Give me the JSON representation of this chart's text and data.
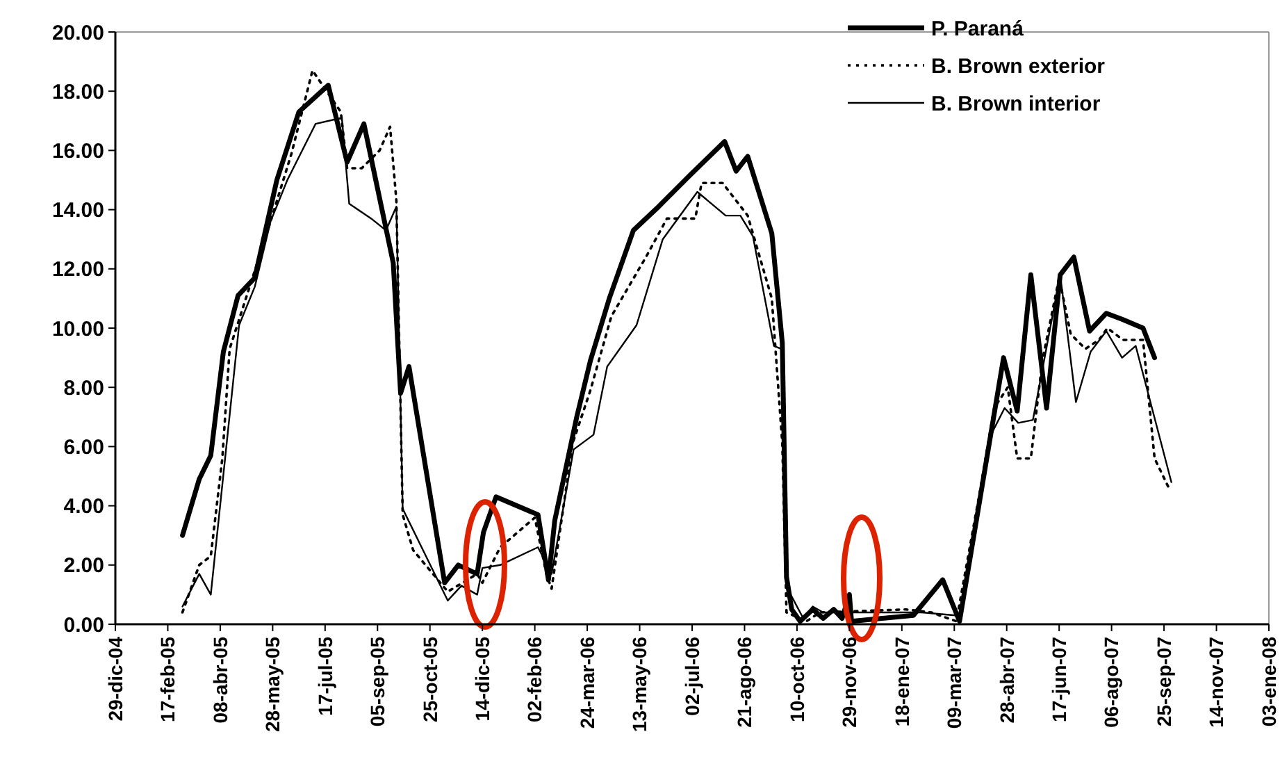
{
  "chart_data": {
    "type": "line",
    "legend": "top right",
    "grid": false,
    "marker": "none",
    "ylim": [
      0,
      20
    ],
    "yticks": [
      {
        "value": 0,
        "label": "0.00"
      },
      {
        "value": 2,
        "label": "2.00"
      },
      {
        "value": 4,
        "label": "4.00"
      },
      {
        "value": 6,
        "label": "6.00"
      },
      {
        "value": 8,
        "label": "8.00"
      },
      {
        "value": 10,
        "label": "10.00"
      },
      {
        "value": 12,
        "label": "12.00"
      },
      {
        "value": 14,
        "label": "14.00"
      },
      {
        "value": 16,
        "label": "16.00"
      },
      {
        "value": 18,
        "label": "18.00"
      },
      {
        "value": 20,
        "label": "20.00"
      }
    ],
    "xlim": [
      "2004-12-29",
      "2008-01-03"
    ],
    "xticks": [
      {
        "value": "2004-12-29",
        "label": "29-dic-04"
      },
      {
        "value": "2005-02-17",
        "label": "17-feb-05"
      },
      {
        "value": "2005-04-08",
        "label": "08-abr-05"
      },
      {
        "value": "2005-05-28",
        "label": "28-may-05"
      },
      {
        "value": "2005-07-17",
        "label": "17-jul-05"
      },
      {
        "value": "2005-09-05",
        "label": "05-sep-05"
      },
      {
        "value": "2005-10-25",
        "label": "25-oct-05"
      },
      {
        "value": "2005-12-14",
        "label": "14-dic-05"
      },
      {
        "value": "2006-02-02",
        "label": "02-feb-06"
      },
      {
        "value": "2006-03-24",
        "label": "24-mar-06"
      },
      {
        "value": "2006-05-13",
        "label": "13-may-06"
      },
      {
        "value": "2006-07-02",
        "label": "02-jul-06"
      },
      {
        "value": "2006-08-21",
        "label": "21-ago-06"
      },
      {
        "value": "2006-10-10",
        "label": "10-oct-06"
      },
      {
        "value": "2006-11-29",
        "label": "29-nov-06"
      },
      {
        "value": "2007-01-18",
        "label": "18-ene-07"
      },
      {
        "value": "2007-03-09",
        "label": "09-mar-07"
      },
      {
        "value": "2007-04-28",
        "label": "28-abr-07"
      },
      {
        "value": "2007-06-17",
        "label": "17-jun-07"
      },
      {
        "value": "2007-08-06",
        "label": "06-ago-07"
      },
      {
        "value": "2007-09-25",
        "label": "25-sep-07"
      },
      {
        "value": "2007-11-14",
        "label": "14-nov-07"
      },
      {
        "value": "2008-01-03",
        "label": "03-ene-08"
      }
    ],
    "series": [
      {
        "name": "P. Paraná",
        "color": "#000000",
        "line_style": "solid",
        "x": [
          "2005-03-03",
          "2005-03-19",
          "2005-03-30",
          "2005-04-11",
          "2005-04-25",
          "2005-05-11",
          "2005-06-01",
          "2005-06-22",
          "2005-07-20",
          "2005-08-07",
          "2005-08-23",
          "2005-09-20",
          "2005-09-27",
          "2005-10-05",
          "2005-11-08",
          "2005-11-21",
          "2005-12-09",
          "2005-12-15",
          "2005-12-27",
          "2006-02-05",
          "2006-02-15",
          "2006-02-21",
          "2006-03-14",
          "2006-03-27",
          "2006-04-14",
          "2006-05-07",
          "2006-05-31",
          "2006-07-01",
          "2006-08-02",
          "2006-08-13",
          "2006-08-24",
          "2006-09-16",
          "2006-09-26",
          "2006-09-30",
          "2006-10-05",
          "2006-10-13",
          "2006-10-25",
          "2006-11-04",
          "2006-11-14",
          "2006-11-22",
          "2006-11-29",
          "2006-12-01",
          "2007-01-29",
          "2007-02-26",
          "2007-03-14",
          "2007-04-25",
          "2007-05-08",
          "2007-05-21",
          "2007-06-05",
          "2007-06-18",
          "2007-07-01",
          "2007-07-16",
          "2007-08-01",
          "2007-08-16",
          "2007-09-05",
          "2007-09-16"
        ],
        "values": [
          3.0,
          4.9,
          5.7,
          9.2,
          11.1,
          11.7,
          15.0,
          17.3,
          18.2,
          15.6,
          16.9,
          12.2,
          7.8,
          8.7,
          1.4,
          2.0,
          1.7,
          3.1,
          4.3,
          3.7,
          1.5,
          3.5,
          7.0,
          8.9,
          11.0,
          13.3,
          14.1,
          15.2,
          16.3,
          15.3,
          15.8,
          13.2,
          9.5,
          1.6,
          0.5,
          0.1,
          0.5,
          0.2,
          0.5,
          0.2,
          1.0,
          0.1,
          0.3,
          1.5,
          0.1,
          9.0,
          7.2,
          11.8,
          7.3,
          11.8,
          12.4,
          9.9,
          10.5,
          10.3,
          10.0,
          9.0
        ]
      },
      {
        "name": "B. Brown exterior",
        "color": "#000000",
        "line_style": "dotted",
        "x": [
          "2005-03-03",
          "2005-03-19",
          "2005-03-30",
          "2005-04-10",
          "2005-04-17",
          "2005-05-07",
          "2005-05-26",
          "2005-06-15",
          "2005-07-05",
          "2005-08-01",
          "2005-08-07",
          "2005-08-21",
          "2005-09-07",
          "2005-09-17",
          "2005-09-23",
          "2005-09-29",
          "2005-10-09",
          "2005-11-11",
          "2005-12-09",
          "2005-12-14",
          "2005-12-31",
          "2006-02-02",
          "2006-02-13",
          "2006-02-18",
          "2006-03-10",
          "2006-03-27",
          "2006-04-16",
          "2006-05-19",
          "2006-06-08",
          "2006-07-05",
          "2006-07-11",
          "2006-07-31",
          "2006-08-24",
          "2006-09-16",
          "2006-09-26",
          "2006-09-30",
          "2006-10-19",
          "2006-11-01",
          "2007-01-22",
          "2007-02-15",
          "2007-03-11",
          "2007-04-02",
          "2007-04-16",
          "2007-04-29",
          "2007-05-08",
          "2007-05-21",
          "2007-06-01",
          "2007-06-17",
          "2007-06-28",
          "2007-07-12",
          "2007-07-25",
          "2007-08-02",
          "2007-08-17",
          "2007-09-05",
          "2007-09-16",
          "2007-10-01"
        ],
        "values": [
          0.4,
          2.0,
          2.3,
          5.6,
          9.3,
          11.5,
          13.6,
          15.9,
          18.7,
          17.3,
          15.4,
          15.4,
          16.0,
          16.8,
          14.3,
          3.7,
          2.5,
          1.1,
          1.7,
          1.4,
          2.6,
          3.6,
          1.7,
          1.2,
          6.1,
          7.9,
          10.4,
          12.4,
          13.7,
          13.7,
          14.9,
          14.9,
          13.8,
          11.0,
          6.1,
          0.4,
          0.1,
          0.4,
          0.5,
          0.4,
          0.1,
          4.4,
          7.3,
          8.0,
          5.6,
          5.6,
          8.9,
          11.7,
          9.8,
          9.3,
          9.6,
          10.0,
          9.6,
          9.6,
          5.6,
          4.5
        ]
      },
      {
        "name": "B. Brown interior",
        "color": "#000000",
        "line_style": "solid",
        "x": [
          "2005-03-03",
          "2005-03-19",
          "2005-03-30",
          "2005-04-26",
          "2005-05-11",
          "2005-05-26",
          "2005-06-11",
          "2005-07-08",
          "2005-08-02",
          "2005-08-09",
          "2005-08-30",
          "2005-09-13",
          "2005-09-23",
          "2005-09-29",
          "2005-11-11",
          "2005-11-24",
          "2005-12-09",
          "2005-12-14",
          "2005-12-31",
          "2006-02-05",
          "2006-02-18",
          "2006-03-11",
          "2006-03-30",
          "2006-04-12",
          "2006-05-10",
          "2006-06-04",
          "2006-07-07",
          "2006-08-03",
          "2006-08-17",
          "2006-08-29",
          "2006-09-18",
          "2006-09-25",
          "2006-10-01",
          "2006-10-16",
          "2006-10-25",
          "2006-11-04",
          "2007-02-06",
          "2007-03-10",
          "2007-03-14",
          "2007-04-13",
          "2007-04-26",
          "2007-05-09",
          "2007-05-23",
          "2007-06-18",
          "2007-07-03",
          "2007-07-17",
          "2007-08-01",
          "2007-08-16",
          "2007-08-29",
          "2007-10-02"
        ],
        "values": [
          0.6,
          1.7,
          1.0,
          10.1,
          11.4,
          13.6,
          15.0,
          16.9,
          17.1,
          14.2,
          13.7,
          13.3,
          14.1,
          3.9,
          0.8,
          1.3,
          1.0,
          1.9,
          2.0,
          2.6,
          1.7,
          5.9,
          6.4,
          8.7,
          10.1,
          13.0,
          14.6,
          13.8,
          13.8,
          13.1,
          9.4,
          9.3,
          1.2,
          0.2,
          0.6,
          0.4,
          0.4,
          0.3,
          0.1,
          6.4,
          7.3,
          6.8,
          6.9,
          11.8,
          7.5,
          9.2,
          9.9,
          9.0,
          9.4,
          4.8
        ]
      }
    ]
  }
}
